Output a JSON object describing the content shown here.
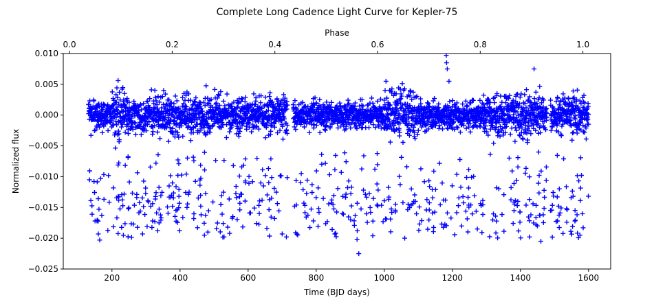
{
  "chart_data": {
    "type": "scatter",
    "title": "Complete Long Cadence Light Curve for Kepler-75",
    "xlabel": "Time (BJD days)",
    "ylabel": "Normalized flux",
    "top_xlabel": "Phase",
    "xlim": [
      57,
      1665
    ],
    "ylim": [
      -0.025,
      0.01
    ],
    "top_xlim": [
      -0.0122,
      1.0541
    ],
    "x_ticks": [
      200,
      400,
      600,
      800,
      1000,
      1200,
      1400,
      1600
    ],
    "x_tick_labels": [
      "200",
      "400",
      "600",
      "800",
      "1000",
      "1200",
      "1400",
      "1600"
    ],
    "y_ticks": [
      -0.025,
      -0.02,
      -0.015,
      -0.01,
      -0.005,
      0.0,
      0.005,
      0.01
    ],
    "y_tick_labels": [
      "−0.025",
      "−0.020",
      "−0.015",
      "−0.010",
      "−0.005",
      "0.000",
      "0.005",
      "0.010"
    ],
    "top_ticks": [
      0.0,
      0.2,
      0.4,
      0.6,
      0.8,
      1.0
    ],
    "top_tick_labels": [
      "0.0",
      "0.2",
      "0.4",
      "0.6",
      "0.8",
      "1.0"
    ],
    "marker": "+",
    "color": "#0000ff",
    "grid": false,
    "series": [
      {
        "x_range": [
          131,
          1600
        ],
        "gaps": [
          [
            716,
            732
          ],
          [
            1478,
            1488
          ]
        ],
        "sample_cadence_days": 0.5,
        "baseline_flux": 0.0,
        "noise_envelope_segments": [
          {
            "x": [
              131,
              200
            ],
            "amplitude": 0.0035
          },
          {
            "x": [
              200,
              232
            ],
            "amplitude": 0.0065
          },
          {
            "x": [
              232,
              460
            ],
            "amplitude": 0.0045
          },
          {
            "x": [
              460,
              500
            ],
            "amplitude": 0.0055
          },
          {
            "x": [
              500,
              700
            ],
            "amplitude": 0.0042
          },
          {
            "x": [
              700,
              716
            ],
            "amplitude": 0.0055
          },
          {
            "x": [
              732,
              1000
            ],
            "amplitude": 0.003
          },
          {
            "x": [
              1000,
              1100
            ],
            "amplitude": 0.0055
          },
          {
            "x": [
              1100,
              1290
            ],
            "amplitude": 0.003
          },
          {
            "x": [
              1290,
              1470
            ],
            "amplitude": 0.005
          },
          {
            "x": [
              1488,
              1600
            ],
            "amplitude": 0.0042
          }
        ],
        "transit_depth_flux": [
          -0.02,
          -0.006
        ],
        "transit_flux_mode": -0.0145,
        "notable_points": [
          [
            1182,
            0.0097
          ],
          [
            1183,
            0.0085
          ],
          [
            1185,
            0.0075
          ],
          [
            1190,
            0.0055
          ],
          [
            1440,
            0.0075
          ],
          [
            925,
            -0.0225
          ],
          [
            920,
            -0.0202
          ],
          [
            164,
            -0.0203
          ],
          [
            1460,
            -0.0205
          ],
          [
            1575,
            -0.0195
          ],
          [
            160,
            -0.0193
          ],
          [
            290,
            -0.0193
          ],
          [
            1060,
            -0.02
          ],
          [
            700,
            -0.0193
          ],
          [
            540,
            -0.0182
          ]
        ]
      }
    ]
  }
}
